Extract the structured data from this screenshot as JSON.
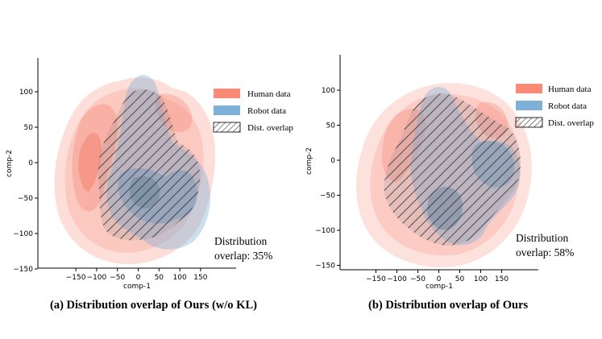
{
  "chart_data": [
    {
      "type": "kde-contour",
      "xlabel": "comp-1",
      "ylabel": "comp-2",
      "xticks": [
        -150,
        -100,
        -50,
        0,
        50,
        100,
        150
      ],
      "yticks": [
        -150,
        -100,
        -50,
        0,
        50,
        100
      ],
      "xlim": [
        -155,
        155
      ],
      "ylim": [
        -155,
        145
      ],
      "series": [
        {
          "name": "Human data",
          "color": "#f98a78"
        },
        {
          "name": "Robot data",
          "color": "#7fb0d8"
        },
        {
          "name": "Dist. overlap",
          "color": "hatch"
        }
      ],
      "annotation": [
        "Distribution",
        "overlap: 35%"
      ],
      "overlap_percent": 35,
      "caption": "(a) Distribution overlap of Ours (w/o KL)"
    },
    {
      "type": "kde-contour",
      "xlabel": "comp-1",
      "ylabel": "comp-2",
      "xticks": [
        -150,
        -100,
        -50,
        0,
        50,
        100,
        150
      ],
      "yticks": [
        -150,
        -100,
        -50,
        0,
        50,
        100
      ],
      "xlim": [
        -155,
        155
      ],
      "ylim": [
        -155,
        145
      ],
      "series": [
        {
          "name": "Human data",
          "color": "#f98a78"
        },
        {
          "name": "Robot data",
          "color": "#7fb0d8"
        },
        {
          "name": "Dist. overlap",
          "color": "hatch"
        }
      ],
      "annotation": [
        "Distribution",
        "overlap: 58%"
      ],
      "overlap_percent": 58,
      "caption": "(b) Distribution overlap of Ours"
    }
  ]
}
